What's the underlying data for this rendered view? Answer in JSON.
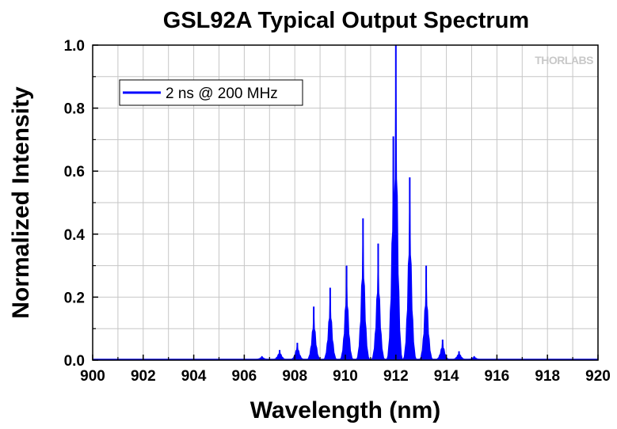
{
  "chart_data": {
    "type": "line",
    "title": "GSL92A Typical Output Spectrum",
    "xlabel": "Wavelength (nm)",
    "ylabel": "Normalized Intensity",
    "xlim": [
      900,
      920
    ],
    "ylim": [
      0,
      1.0
    ],
    "x_ticks": [
      "900",
      "902",
      "904",
      "906",
      "908",
      "910",
      "912",
      "914",
      "916",
      "918",
      "920"
    ],
    "y_ticks": [
      "0.0",
      "0.2",
      "0.4",
      "0.6",
      "0.8",
      "1.0"
    ],
    "grid": true,
    "legend_position": "top-left",
    "watermark": "THORLABS",
    "series": [
      {
        "name": "2 ns @ 200 MHz",
        "color": "#0000ff",
        "peaks": [
          {
            "x": 906.7,
            "y": 0.012
          },
          {
            "x": 907.4,
            "y": 0.032
          },
          {
            "x": 908.1,
            "y": 0.055
          },
          {
            "x": 908.75,
            "y": 0.17
          },
          {
            "x": 909.4,
            "y": 0.23
          },
          {
            "x": 910.05,
            "y": 0.3
          },
          {
            "x": 910.7,
            "y": 0.45
          },
          {
            "x": 911.3,
            "y": 0.37
          },
          {
            "x": 911.9,
            "y": 0.71
          },
          {
            "x": 912.0,
            "y": 1.0
          },
          {
            "x": 912.55,
            "y": 0.58
          },
          {
            "x": 913.2,
            "y": 0.3
          },
          {
            "x": 913.85,
            "y": 0.065
          },
          {
            "x": 914.5,
            "y": 0.028
          },
          {
            "x": 915.1,
            "y": 0.012
          }
        ]
      }
    ]
  }
}
